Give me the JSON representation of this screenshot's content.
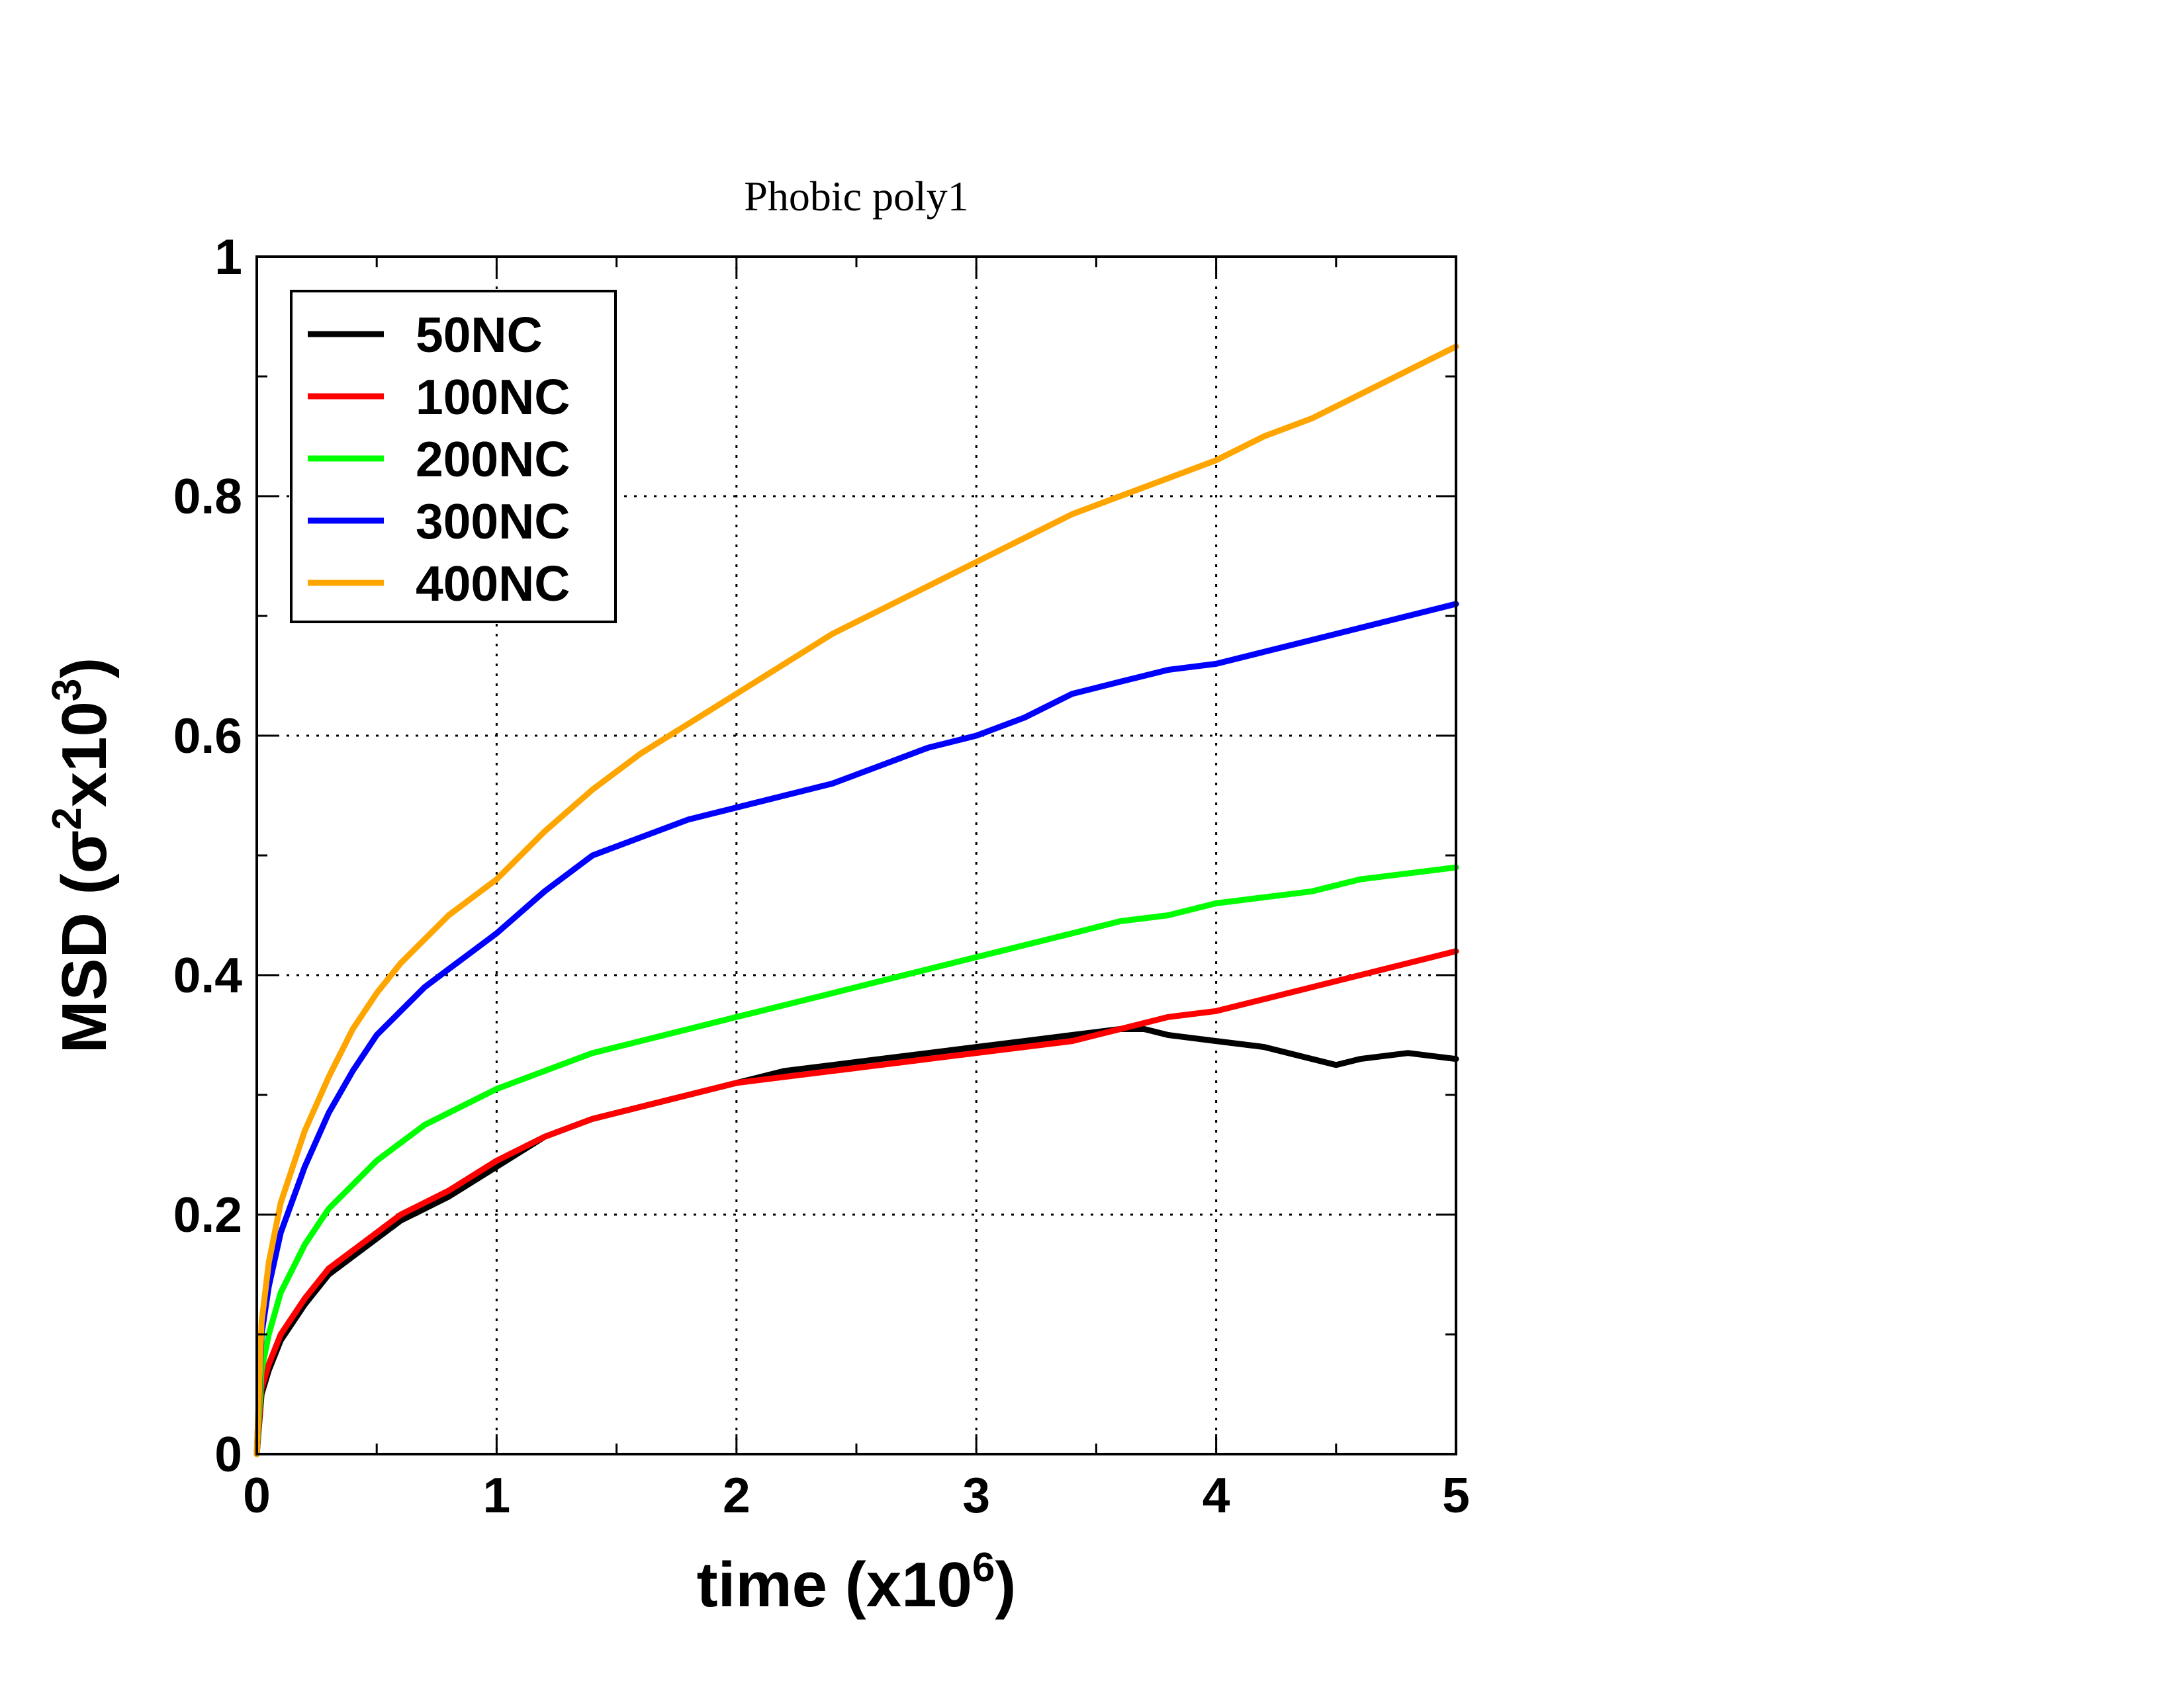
{
  "chart_data": {
    "type": "line",
    "title": "Phobic poly1",
    "xlabel": "time (x10",
    "xlabel_sup": "6",
    "xlabel_end": ")",
    "ylabel_prefix": "MSD (σ",
    "ylabel_sup1": "2",
    "ylabel_mid": "x10",
    "ylabel_sup2": "3",
    "ylabel_end": ")",
    "xlim": [
      0,
      5
    ],
    "ylim": [
      0,
      1
    ],
    "x_ticks": [
      "0",
      "1",
      "2",
      "3",
      "4",
      "5"
    ],
    "y_ticks": [
      "0",
      "0.2",
      "0.4",
      "0.6",
      "0.8",
      "1"
    ],
    "grid": true,
    "legend_position": "top-left",
    "series": [
      {
        "name": "50NC",
        "color": "#000000",
        "x": [
          0,
          0.02,
          0.05,
          0.1,
          0.2,
          0.3,
          0.4,
          0.5,
          0.6,
          0.7,
          0.8,
          1.0,
          1.2,
          1.4,
          1.6,
          1.8,
          2.0,
          2.2,
          2.4,
          2.6,
          2.8,
          3.0,
          3.2,
          3.4,
          3.6,
          3.7,
          3.8,
          4.0,
          4.2,
          4.4,
          4.5,
          4.6,
          4.8,
          5.0
        ],
        "y": [
          0,
          0.05,
          0.07,
          0.095,
          0.125,
          0.15,
          0.165,
          0.18,
          0.195,
          0.205,
          0.215,
          0.24,
          0.265,
          0.28,
          0.29,
          0.3,
          0.31,
          0.32,
          0.325,
          0.33,
          0.335,
          0.34,
          0.345,
          0.35,
          0.355,
          0.355,
          0.35,
          0.345,
          0.34,
          0.33,
          0.325,
          0.33,
          0.335,
          0.33
        ]
      },
      {
        "name": "100NC",
        "color": "#ff0000",
        "x": [
          0,
          0.02,
          0.05,
          0.1,
          0.2,
          0.3,
          0.4,
          0.5,
          0.6,
          0.7,
          0.8,
          1.0,
          1.2,
          1.4,
          1.6,
          1.8,
          2.0,
          2.2,
          2.4,
          2.6,
          2.8,
          3.0,
          3.2,
          3.4,
          3.6,
          3.8,
          4.0,
          4.2,
          4.4,
          4.6,
          4.8,
          5.0
        ],
        "y": [
          0,
          0.055,
          0.075,
          0.1,
          0.13,
          0.155,
          0.17,
          0.185,
          0.2,
          0.21,
          0.22,
          0.245,
          0.265,
          0.28,
          0.29,
          0.3,
          0.31,
          0.315,
          0.32,
          0.325,
          0.33,
          0.335,
          0.34,
          0.345,
          0.355,
          0.365,
          0.37,
          0.38,
          0.39,
          0.4,
          0.41,
          0.42
        ]
      },
      {
        "name": "200NC",
        "color": "#00ff00",
        "x": [
          0,
          0.02,
          0.05,
          0.1,
          0.2,
          0.3,
          0.4,
          0.5,
          0.6,
          0.7,
          0.8,
          1.0,
          1.2,
          1.4,
          1.6,
          1.8,
          2.0,
          2.2,
          2.4,
          2.6,
          2.8,
          3.0,
          3.2,
          3.4,
          3.6,
          3.8,
          4.0,
          4.2,
          4.4,
          4.6,
          4.8,
          5.0
        ],
        "y": [
          0,
          0.07,
          0.1,
          0.135,
          0.175,
          0.205,
          0.225,
          0.245,
          0.26,
          0.275,
          0.285,
          0.305,
          0.32,
          0.335,
          0.345,
          0.355,
          0.365,
          0.375,
          0.385,
          0.395,
          0.405,
          0.415,
          0.425,
          0.435,
          0.445,
          0.45,
          0.46,
          0.465,
          0.47,
          0.48,
          0.485,
          0.49
        ]
      },
      {
        "name": "300NC",
        "color": "#0000ff",
        "x": [
          0,
          0.02,
          0.05,
          0.1,
          0.2,
          0.3,
          0.4,
          0.5,
          0.6,
          0.7,
          0.8,
          0.9,
          1.0,
          1.2,
          1.4,
          1.6,
          1.8,
          2.0,
          2.2,
          2.4,
          2.6,
          2.8,
          3.0,
          3.2,
          3.4,
          3.6,
          3.8,
          4.0,
          4.2,
          4.4,
          4.6,
          4.8,
          5.0
        ],
        "y": [
          0,
          0.1,
          0.14,
          0.185,
          0.24,
          0.285,
          0.32,
          0.35,
          0.37,
          0.39,
          0.405,
          0.42,
          0.435,
          0.47,
          0.5,
          0.515,
          0.53,
          0.54,
          0.55,
          0.56,
          0.575,
          0.59,
          0.6,
          0.615,
          0.635,
          0.645,
          0.655,
          0.66,
          0.67,
          0.68,
          0.69,
          0.7,
          0.71
        ]
      },
      {
        "name": "400NC",
        "color": "#ffa500",
        "x": [
          0,
          0.02,
          0.05,
          0.1,
          0.2,
          0.3,
          0.4,
          0.5,
          0.6,
          0.7,
          0.8,
          0.9,
          1.0,
          1.2,
          1.4,
          1.6,
          1.8,
          2.0,
          2.2,
          2.4,
          2.6,
          2.8,
          3.0,
          3.2,
          3.4,
          3.6,
          3.8,
          4.0,
          4.2,
          4.4,
          4.6,
          4.8,
          5.0
        ],
        "y": [
          0,
          0.11,
          0.16,
          0.21,
          0.27,
          0.315,
          0.355,
          0.385,
          0.41,
          0.43,
          0.45,
          0.465,
          0.48,
          0.52,
          0.555,
          0.585,
          0.61,
          0.635,
          0.66,
          0.685,
          0.705,
          0.725,
          0.745,
          0.765,
          0.785,
          0.8,
          0.815,
          0.83,
          0.85,
          0.865,
          0.885,
          0.905,
          0.925
        ]
      }
    ]
  }
}
